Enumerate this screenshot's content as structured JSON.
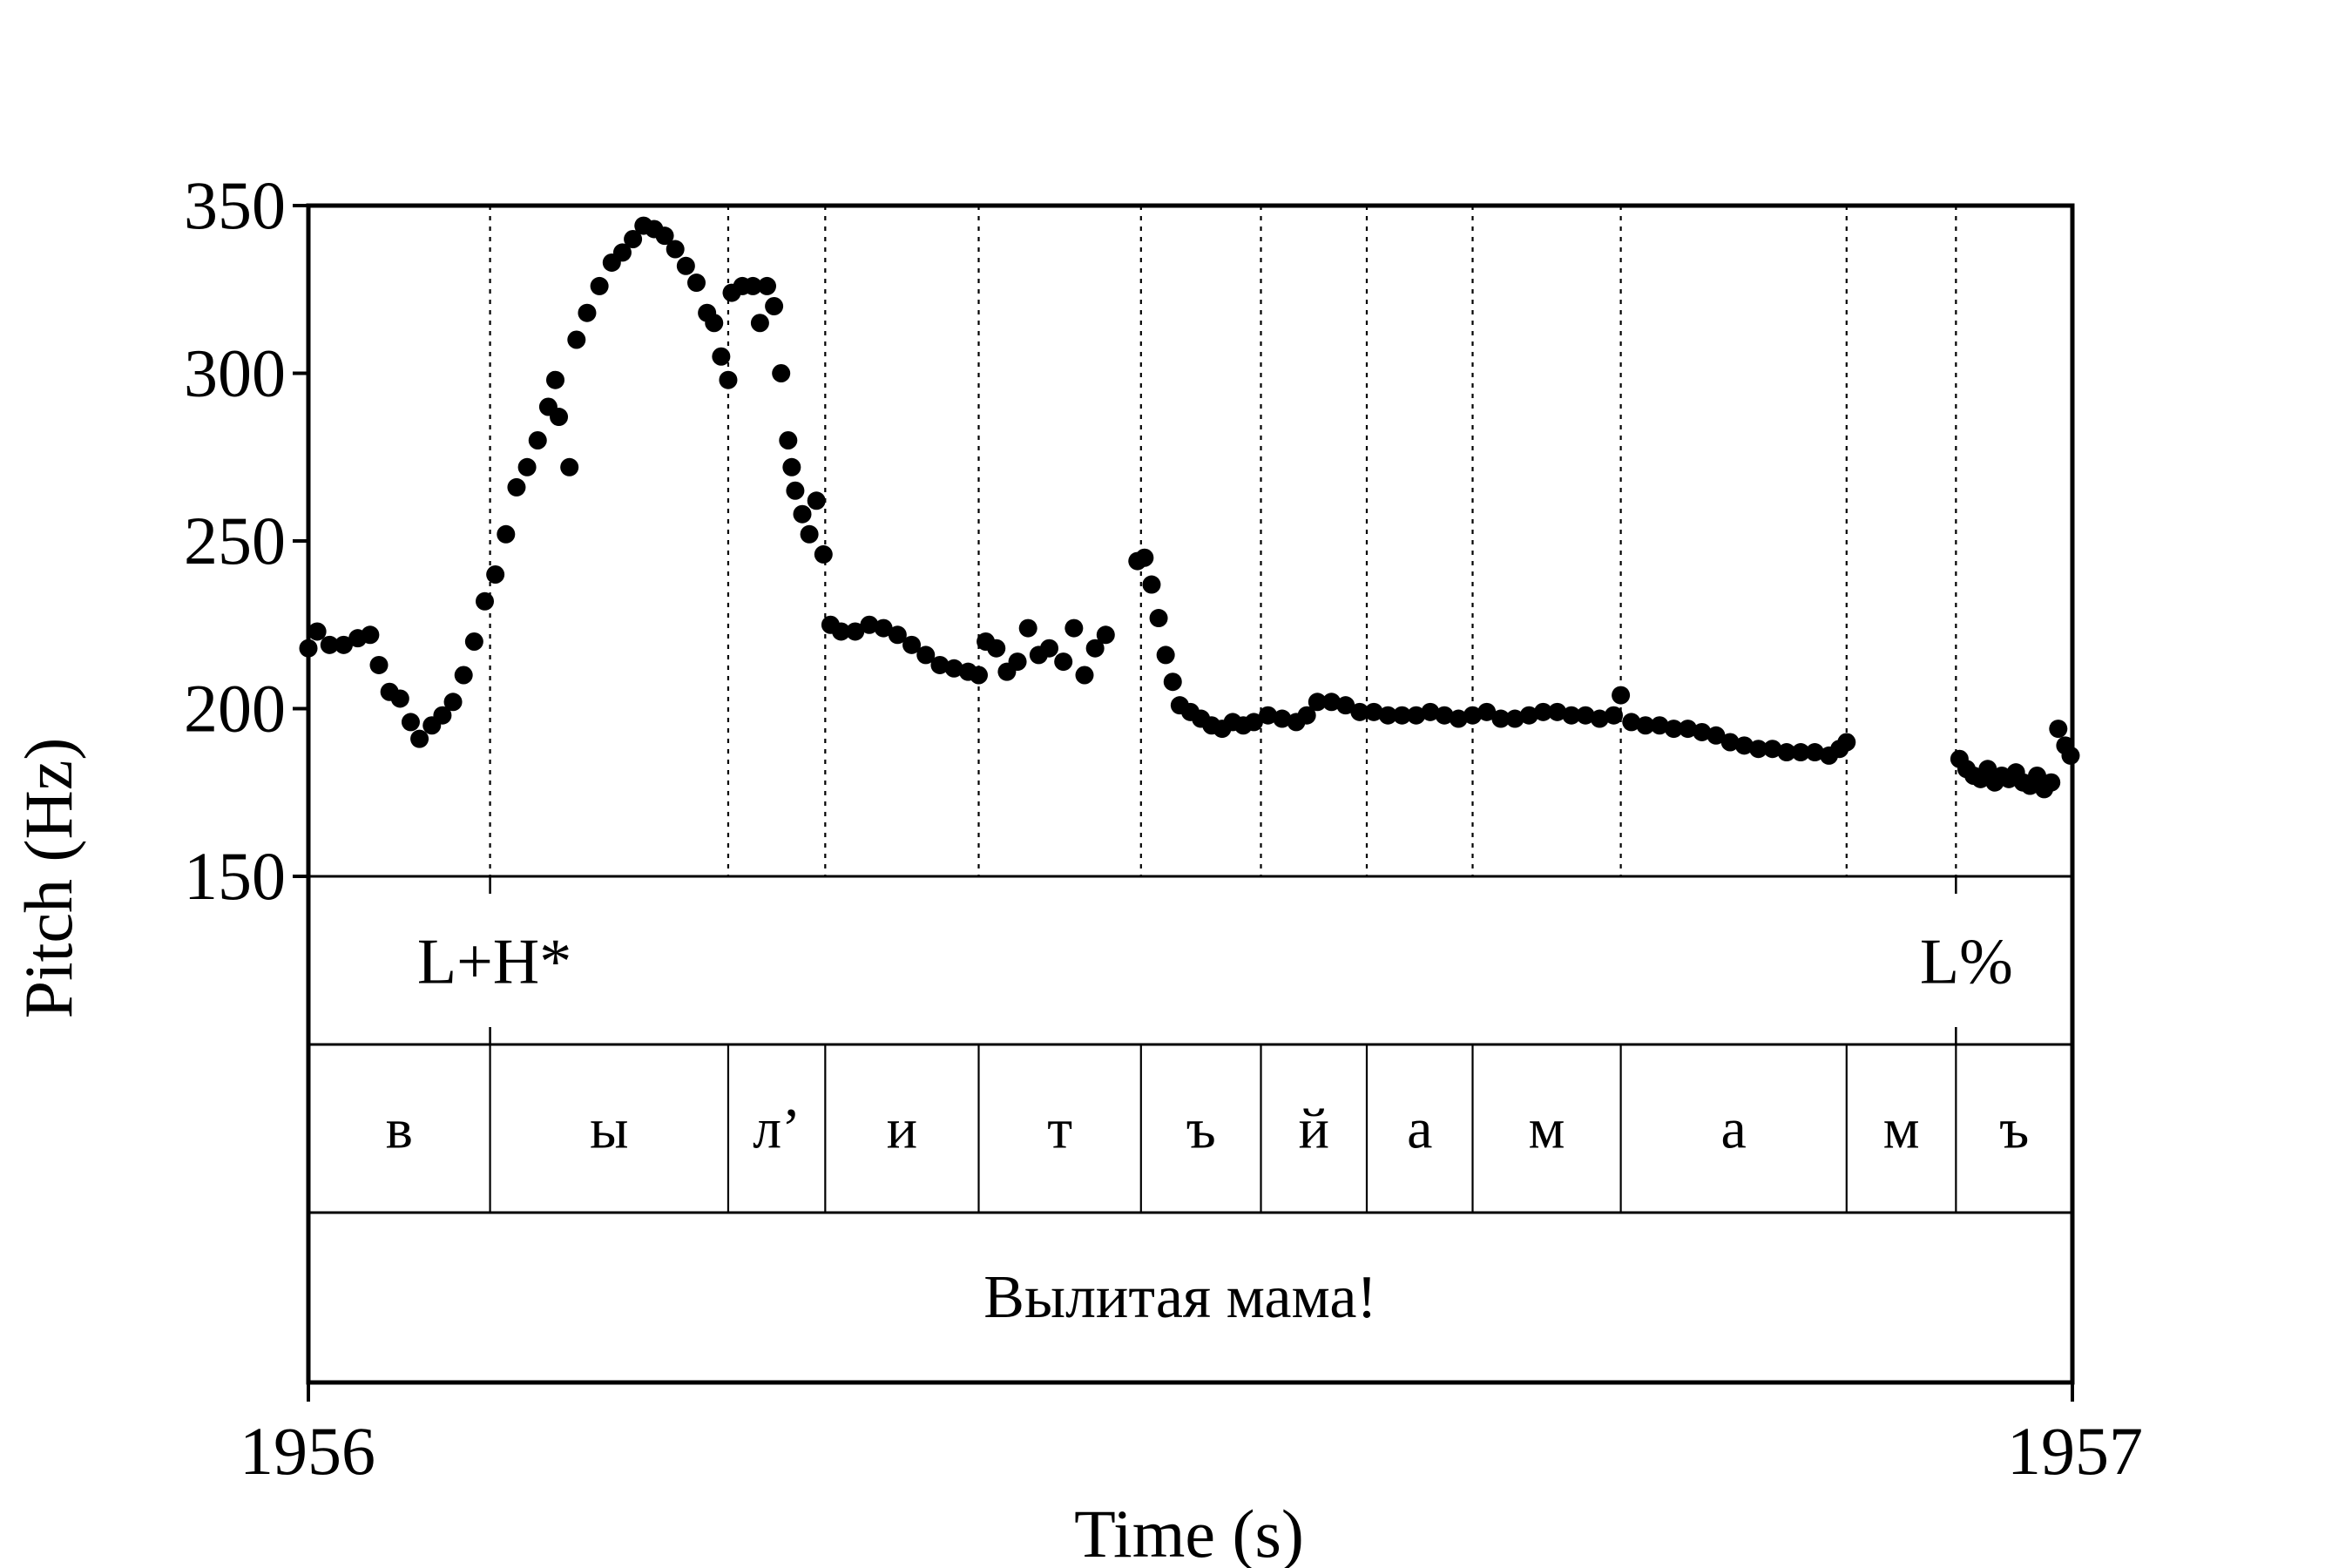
{
  "chart_data": {
    "type": "scatter",
    "xlabel": "Time (s)",
    "ylabel": "Pitch (Hz)",
    "xlim": [
      1956,
      1957
    ],
    "ylim": [
      150,
      350
    ],
    "x_ticks": [
      "1956",
      "1957"
    ],
    "y_ticks": [
      "150",
      "200",
      "250",
      "300",
      "350"
    ],
    "grid": false,
    "boundaries": [
      0.103,
      0.238,
      0.293,
      0.38,
      0.472,
      0.54,
      0.6,
      0.66,
      0.744,
      0.872,
      0.934
    ],
    "tones": [
      {
        "label": "L+H*",
        "t": 0.103
      },
      {
        "label": "L%",
        "t": 0.934
      }
    ],
    "segments": [
      {
        "label": "в",
        "start": 0.0,
        "end": 0.103
      },
      {
        "label": "ы",
        "start": 0.103,
        "end": 0.238
      },
      {
        "label": "л’",
        "start": 0.238,
        "end": 0.293
      },
      {
        "label": "и",
        "start": 0.293,
        "end": 0.38
      },
      {
        "label": "т",
        "start": 0.38,
        "end": 0.472
      },
      {
        "label": "ъ",
        "start": 0.472,
        "end": 0.54
      },
      {
        "label": "й",
        "start": 0.54,
        "end": 0.6
      },
      {
        "label": "а",
        "start": 0.6,
        "end": 0.66
      },
      {
        "label": "м",
        "start": 0.66,
        "end": 0.744
      },
      {
        "label": "а",
        "start": 0.744,
        "end": 0.872
      },
      {
        "label": "м",
        "start": 0.872,
        "end": 0.934
      },
      {
        "label": "ъ",
        "start": 0.934,
        "end": 1.0
      }
    ],
    "sentence": "Вылитая мама!",
    "pitch_track": [
      [
        0.0,
        218
      ],
      [
        0.005,
        223
      ],
      [
        0.012,
        219
      ],
      [
        0.02,
        219
      ],
      [
        0.028,
        221
      ],
      [
        0.035,
        222
      ],
      [
        0.04,
        213
      ],
      [
        0.046,
        205
      ],
      [
        0.052,
        203
      ],
      [
        0.058,
        196
      ],
      [
        0.063,
        191
      ],
      [
        0.07,
        195
      ],
      [
        0.076,
        198
      ],
      [
        0.082,
        202
      ],
      [
        0.088,
        210
      ],
      [
        0.094,
        220
      ],
      [
        0.1,
        232
      ],
      [
        0.106,
        240
      ],
      [
        0.112,
        252
      ],
      [
        0.118,
        266
      ],
      [
        0.124,
        272
      ],
      [
        0.13,
        280
      ],
      [
        0.136,
        290
      ],
      [
        0.14,
        298
      ],
      [
        0.142,
        287
      ],
      [
        0.148,
        272
      ],
      [
        0.152,
        310
      ],
      [
        0.158,
        318
      ],
      [
        0.165,
        326
      ],
      [
        0.172,
        333
      ],
      [
        0.178,
        336
      ],
      [
        0.184,
        340
      ],
      [
        0.19,
        344
      ],
      [
        0.196,
        343
      ],
      [
        0.202,
        341
      ],
      [
        0.208,
        337
      ],
      [
        0.214,
        332
      ],
      [
        0.22,
        327
      ],
      [
        0.226,
        318
      ],
      [
        0.23,
        315
      ],
      [
        0.234,
        305
      ],
      [
        0.238,
        298
      ],
      [
        0.24,
        324
      ],
      [
        0.246,
        326
      ],
      [
        0.252,
        326
      ],
      [
        0.256,
        315
      ],
      [
        0.26,
        326
      ],
      [
        0.264,
        320
      ],
      [
        0.268,
        300
      ],
      [
        0.272,
        280
      ],
      [
        0.274,
        272
      ],
      [
        0.276,
        265
      ],
      [
        0.28,
        258
      ],
      [
        0.284,
        252
      ],
      [
        0.288,
        262
      ],
      [
        0.292,
        246
      ],
      [
        0.296,
        225
      ],
      [
        0.302,
        223
      ],
      [
        0.31,
        223
      ],
      [
        0.318,
        225
      ],
      [
        0.326,
        224
      ],
      [
        0.334,
        222
      ],
      [
        0.342,
        219
      ],
      [
        0.35,
        216
      ],
      [
        0.358,
        213
      ],
      [
        0.366,
        212
      ],
      [
        0.374,
        211
      ],
      [
        0.38,
        210
      ],
      [
        0.384,
        220
      ],
      [
        0.39,
        218
      ],
      [
        0.396,
        211
      ],
      [
        0.402,
        214
      ],
      [
        0.408,
        224
      ],
      [
        0.414,
        216
      ],
      [
        0.42,
        218
      ],
      [
        0.428,
        214
      ],
      [
        0.434,
        224
      ],
      [
        0.44,
        210
      ],
      [
        0.446,
        218
      ],
      [
        0.452,
        222
      ],
      [
        0.47,
        244
      ],
      [
        0.474,
        245
      ],
      [
        0.478,
        237
      ],
      [
        0.482,
        227
      ],
      [
        0.486,
        216
      ],
      [
        0.49,
        208
      ],
      [
        0.494,
        201
      ],
      [
        0.5,
        199
      ],
      [
        0.506,
        197
      ],
      [
        0.512,
        195
      ],
      [
        0.518,
        194
      ],
      [
        0.524,
        196
      ],
      [
        0.53,
        195
      ],
      [
        0.536,
        196
      ],
      [
        0.544,
        198
      ],
      [
        0.552,
        197
      ],
      [
        0.56,
        196
      ],
      [
        0.566,
        198
      ],
      [
        0.572,
        202
      ],
      [
        0.58,
        202
      ],
      [
        0.588,
        201
      ],
      [
        0.596,
        199
      ],
      [
        0.604,
        199
      ],
      [
        0.612,
        198
      ],
      [
        0.62,
        198
      ],
      [
        0.628,
        198
      ],
      [
        0.636,
        199
      ],
      [
        0.644,
        198
      ],
      [
        0.652,
        197
      ],
      [
        0.66,
        198
      ],
      [
        0.668,
        199
      ],
      [
        0.676,
        197
      ],
      [
        0.684,
        197
      ],
      [
        0.692,
        198
      ],
      [
        0.7,
        199
      ],
      [
        0.708,
        199
      ],
      [
        0.716,
        198
      ],
      [
        0.724,
        198
      ],
      [
        0.732,
        197
      ],
      [
        0.74,
        198
      ],
      [
        0.744,
        204
      ],
      [
        0.75,
        196
      ],
      [
        0.758,
        195
      ],
      [
        0.766,
        195
      ],
      [
        0.774,
        194
      ],
      [
        0.782,
        194
      ],
      [
        0.79,
        193
      ],
      [
        0.798,
        192
      ],
      [
        0.806,
        190
      ],
      [
        0.814,
        189
      ],
      [
        0.822,
        188
      ],
      [
        0.83,
        188
      ],
      [
        0.838,
        187
      ],
      [
        0.846,
        187
      ],
      [
        0.854,
        187
      ],
      [
        0.862,
        186
      ],
      [
        0.868,
        188
      ],
      [
        0.872,
        190
      ],
      [
        0.936,
        185
      ],
      [
        0.94,
        182
      ],
      [
        0.944,
        180
      ],
      [
        0.948,
        179
      ],
      [
        0.952,
        182
      ],
      [
        0.956,
        178
      ],
      [
        0.96,
        180
      ],
      [
        0.964,
        179
      ],
      [
        0.968,
        181
      ],
      [
        0.972,
        178
      ],
      [
        0.976,
        177
      ],
      [
        0.98,
        180
      ],
      [
        0.984,
        176
      ],
      [
        0.988,
        178
      ],
      [
        0.992,
        194
      ],
      [
        0.996,
        189
      ],
      [
        0.999,
        186
      ]
    ]
  }
}
